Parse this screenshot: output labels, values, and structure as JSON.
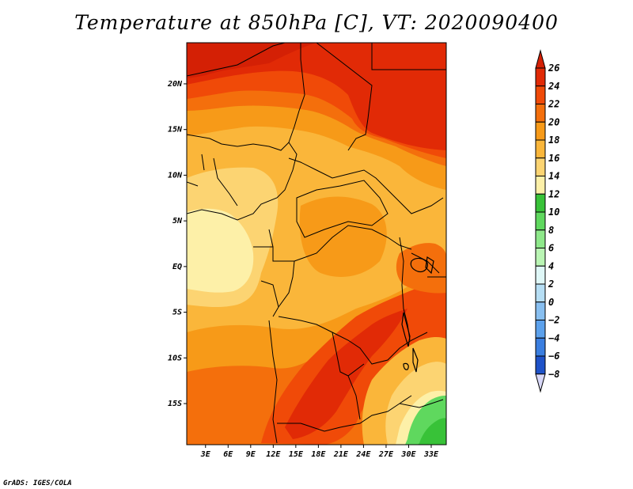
{
  "title": "Temperature at 850hPa [C], VT: 2020090400",
  "footer": "GrADS: IGES/COLA",
  "map": {
    "lat_labels": [
      "20N",
      "15N",
      "10N",
      "5N",
      "EQ",
      "5S",
      "10S",
      "15S"
    ],
    "lon_labels": [
      "3E",
      "6E",
      "9E",
      "12E",
      "15E",
      "18E",
      "21E",
      "24E",
      "27E",
      "30E",
      "33E"
    ],
    "lat_values": [
      20,
      15,
      10,
      5,
      0,
      -5,
      -10,
      -15
    ],
    "lon_values": [
      3,
      6,
      9,
      12,
      15,
      18,
      21,
      24,
      27,
      30,
      33
    ],
    "lon_range": [
      0.5,
      35
    ],
    "lat_range": [
      -19.5,
      24.5
    ]
  },
  "colorbar": {
    "labels": [
      "26",
      "24",
      "22",
      "20",
      "18",
      "16",
      "14",
      "12",
      "10",
      "8",
      "6",
      "4",
      "2",
      "0",
      "−2",
      "−4",
      "−6",
      "−8"
    ],
    "colors": [
      "#e12a06",
      "#f04a08",
      "#f46f0c",
      "#f79a18",
      "#fab63a",
      "#fcd472",
      "#fdf0a8",
      "#38c238",
      "#5fd85e",
      "#8ee88a",
      "#baf5b4",
      "#dff7f7",
      "#b6def4",
      "#88bff0",
      "#5ca1ec",
      "#3a7ee0",
      "#1e52c8",
      "#0b33a6",
      "#041a6e"
    ],
    "over_color": "#d42005",
    "under_color": "#d8d8f8"
  }
}
